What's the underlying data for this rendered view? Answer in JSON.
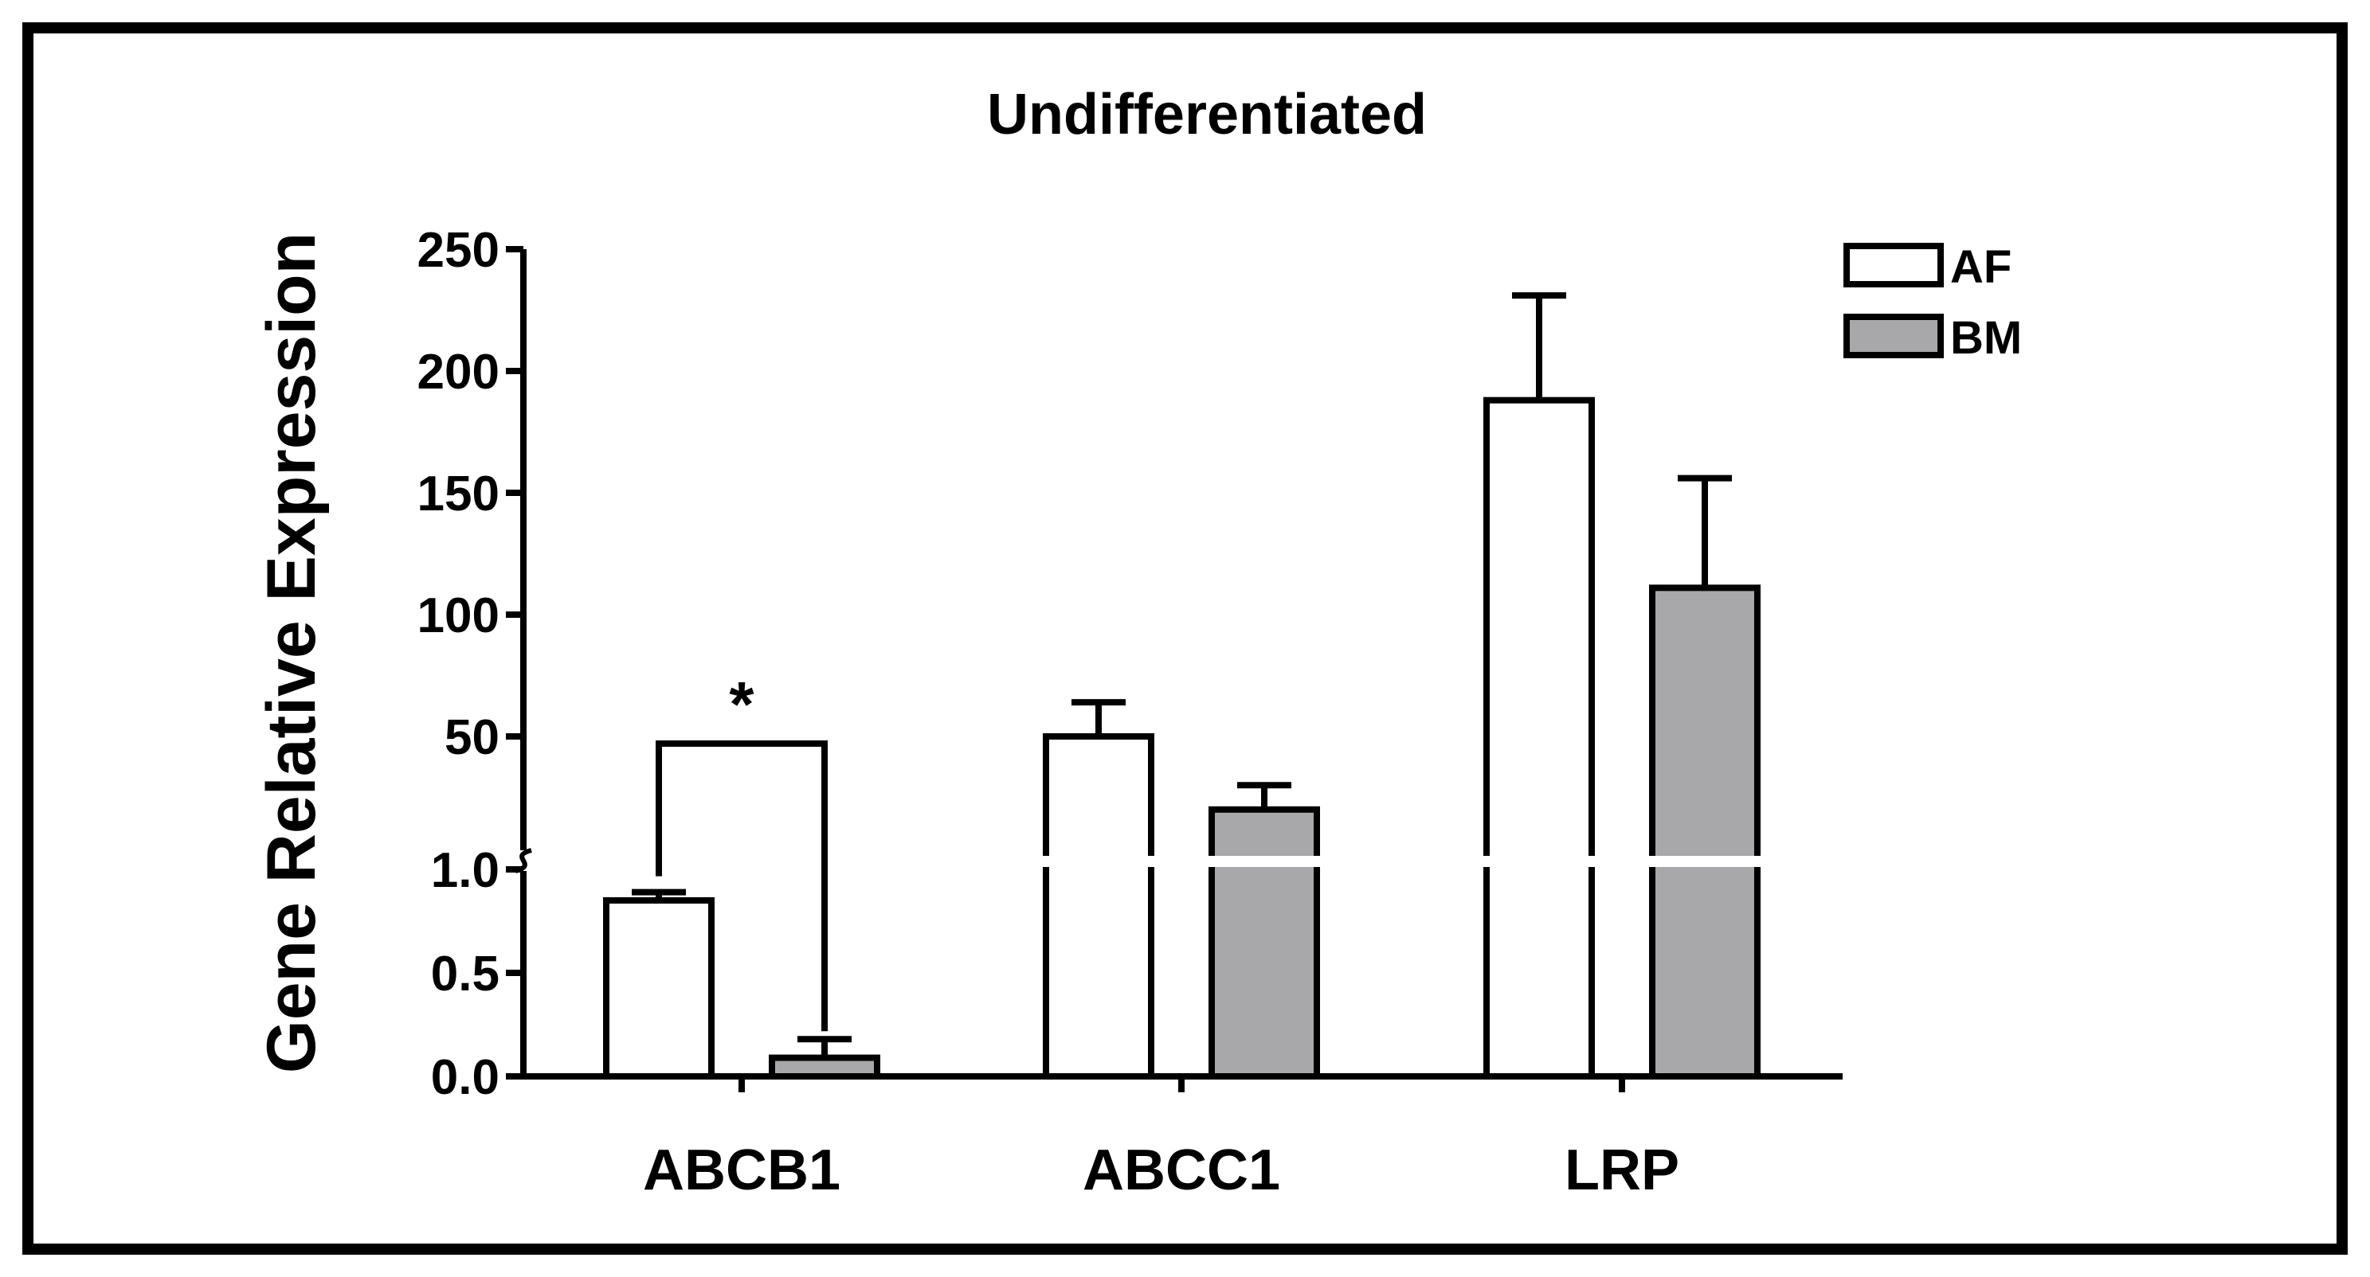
{
  "chart_data": {
    "type": "bar",
    "title": "Undifferentiated",
    "ylabel": "Gene Relative Expression",
    "xlabel": "",
    "categories": [
      "ABCB1",
      "ABCC1",
      "LRP"
    ],
    "series": [
      {
        "name": "AF",
        "values": [
          0.85,
          50,
          188
        ],
        "errors": [
          0.04,
          14,
          43
        ]
      },
      {
        "name": "BM",
        "values": [
          0.09,
          20,
          111
        ],
        "errors": [
          0.09,
          10,
          45
        ]
      }
    ],
    "y_axis": {
      "broken": true,
      "lower_segment": {
        "ylim": [
          0,
          1.0
        ],
        "ticks": [
          "0.0",
          "0.5",
          "1.0"
        ]
      },
      "upper_segment": {
        "ylim": [
          0,
          250
        ],
        "ticks": [
          "50",
          "100",
          "150",
          "200",
          "250"
        ]
      }
    },
    "significance": [
      {
        "category": "ABCB1",
        "label": "*"
      }
    ],
    "colors": {
      "AF": "#ffffff",
      "BM": "#a8a7aa",
      "outline": "#000000"
    },
    "grid": false,
    "legend_position": "top-right"
  }
}
